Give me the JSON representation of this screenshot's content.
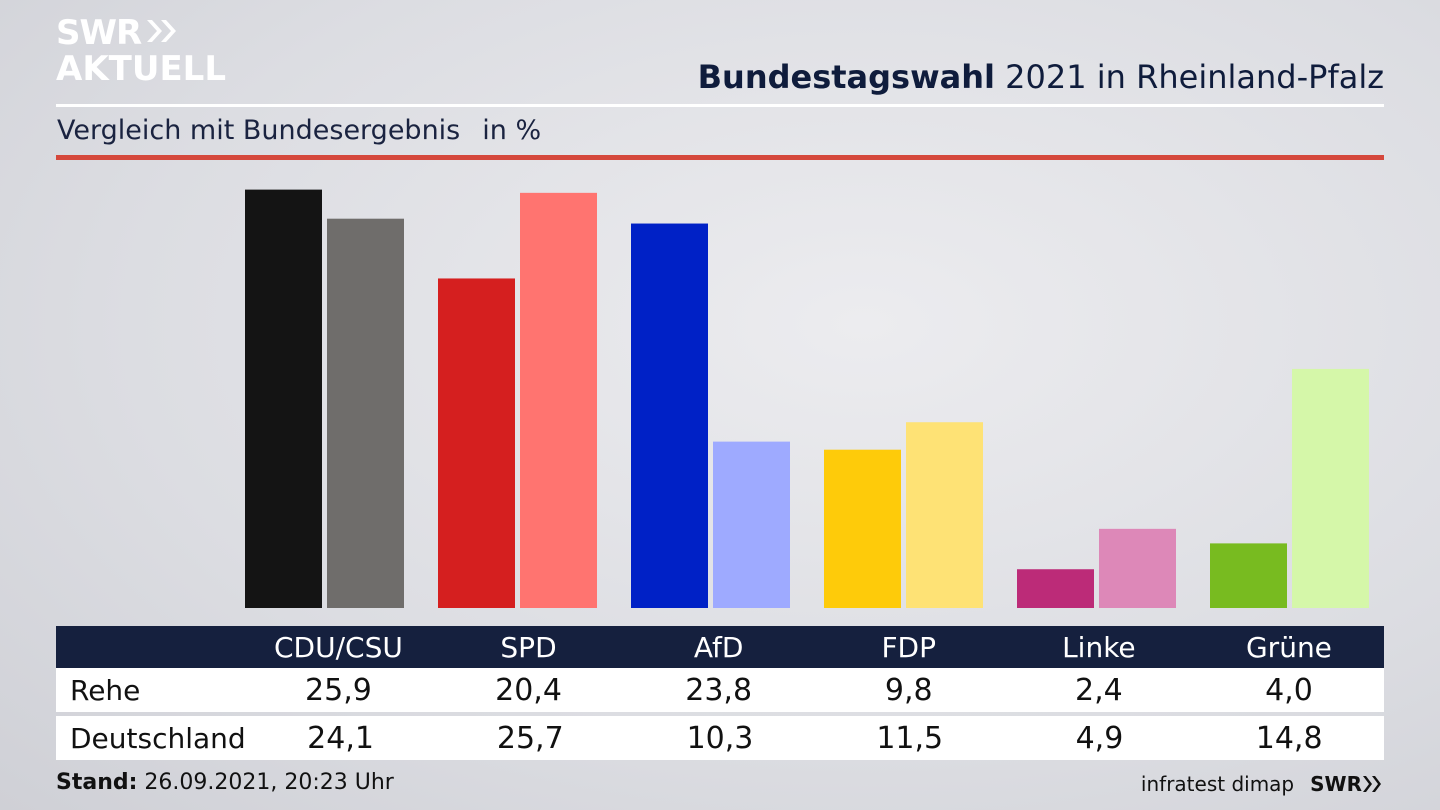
{
  "logo": {
    "line1": "SWR",
    "line2": "AKTUELL"
  },
  "header": {
    "title_bold": "Bundestagswahl",
    "title_rest": " 2021 in Rheinland-Pfalz"
  },
  "subtitle": {
    "text": "Vergleich mit Bundesergebnis",
    "unit": "in %"
  },
  "chart_data": {
    "type": "bar",
    "title": "Bundestagswahl 2021 in Rheinland-Pfalz",
    "subtitle": "Vergleich mit Bundesergebnis in %",
    "categories": [
      "CDU/CSU",
      "SPD",
      "AfD",
      "FDP",
      "Linke",
      "Grüne"
    ],
    "series": [
      {
        "name": "Rehe",
        "values": [
          25.9,
          20.4,
          23.8,
          9.8,
          2.4,
          4.0
        ],
        "colors": [
          "#141414",
          "#d51f1f",
          "#0021c6",
          "#fecb0a",
          "#bc2b78",
          "#78bb20"
        ]
      },
      {
        "name": "Deutschland",
        "values": [
          24.1,
          25.7,
          10.3,
          11.5,
          4.9,
          14.8
        ],
        "colors": [
          "#6f6d6b",
          "#ff7470",
          "#9eaaff",
          "#fee275",
          "#dd88b8",
          "#d5f7a9"
        ]
      }
    ],
    "ylim": [
      0,
      26
    ],
    "grid": false
  },
  "table": {
    "columns": [
      "CDU/CSU",
      "SPD",
      "AfD",
      "FDP",
      "Linke",
      "Grüne"
    ],
    "rows": [
      {
        "label": "Rehe",
        "values": [
          "25,9",
          "20,4",
          "23,8",
          "9,8",
          "2,4",
          "4,0"
        ]
      },
      {
        "label": "Deutschland",
        "values": [
          "24,1",
          "25,7",
          "10,3",
          "11,5",
          "4,9",
          "14,8"
        ]
      }
    ]
  },
  "footer": {
    "stand_label": "Stand:",
    "stand_value": " 26.09.2021, 20:23 Uhr",
    "source": "infratest dimap",
    "brand": "SWR"
  }
}
